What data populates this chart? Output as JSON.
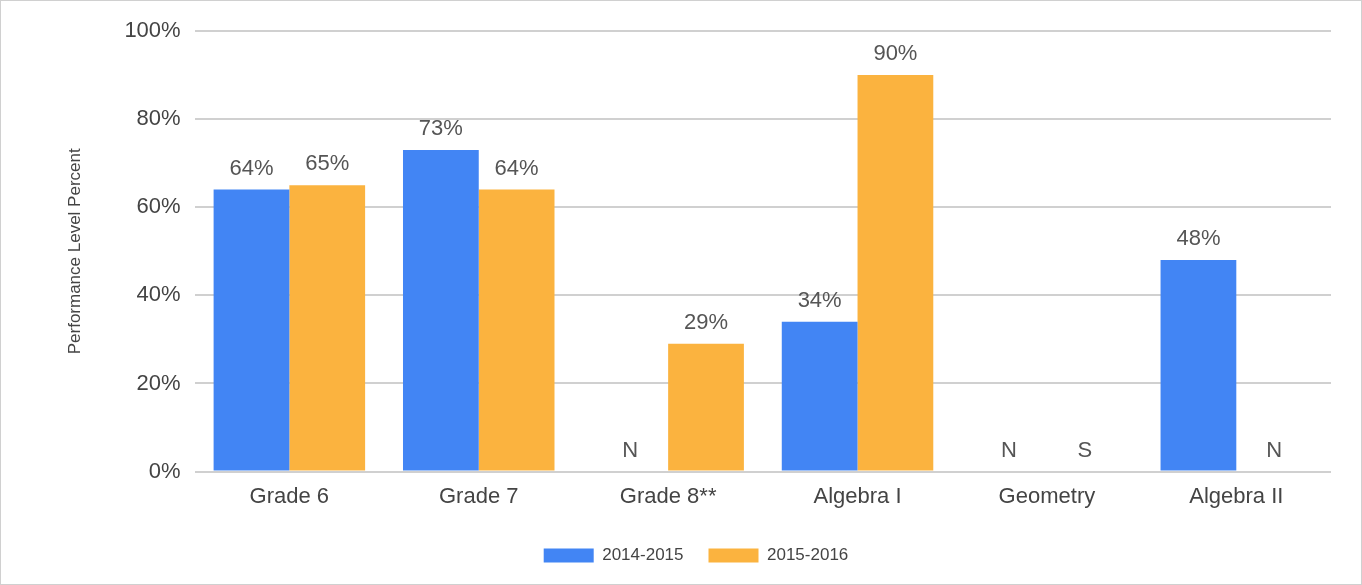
{
  "chart_data": {
    "type": "bar",
    "ylabel": "Performance Level Percent",
    "categories": [
      "Grade 6",
      "Grade 7",
      "Grade 8**",
      "Algebra I",
      "Geometry",
      "Algebra II"
    ],
    "series": [
      {
        "name": "2014-2015",
        "color": "#4285f4",
        "values": [
          64,
          73,
          null,
          34,
          null,
          48
        ],
        "value_labels": [
          "64%",
          "73%",
          "N",
          "34%",
          "N",
          "48%"
        ]
      },
      {
        "name": "2015-2016",
        "color": "#fbb33f",
        "values": [
          65,
          64,
          29,
          90,
          null,
          null
        ],
        "value_labels": [
          "65%",
          "64%",
          "29%",
          "90%",
          "S",
          "N"
        ]
      }
    ],
    "ylim": [
      0,
      100
    ],
    "yticks": [
      {
        "value": 0,
        "label": "0%"
      },
      {
        "value": 20,
        "label": "20%"
      },
      {
        "value": 40,
        "label": "40%"
      },
      {
        "value": 60,
        "label": "60%"
      },
      {
        "value": 80,
        "label": "80%"
      },
      {
        "value": 100,
        "label": "100%"
      }
    ],
    "grid": "y",
    "legend": "bottom"
  }
}
